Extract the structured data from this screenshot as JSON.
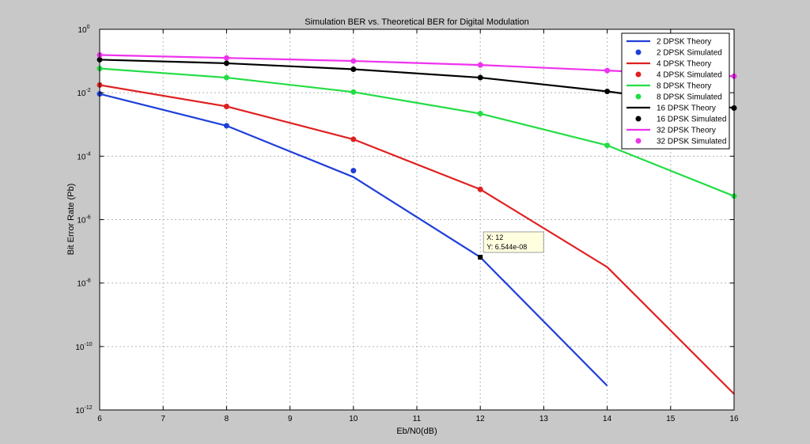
{
  "chart_data": {
    "type": "line",
    "title": "Simulation BER vs. Theoretical BER for Digital Modulation",
    "xlabel": "Eb/N0(dB)",
    "ylabel": "Bit Error Rate (Pb)",
    "xlim": [
      6,
      16
    ],
    "ylim": [
      1e-12,
      1
    ],
    "yscale": "log",
    "grid": true,
    "legend_position": "top-right",
    "x_ticks": [
      6,
      7,
      8,
      9,
      10,
      11,
      12,
      13,
      14,
      15,
      16
    ],
    "x_tick_labels": [
      "6",
      "7",
      "8",
      "9",
      "10",
      "11",
      "12",
      "13",
      "14",
      "15",
      "16"
    ],
    "y_ticks": [
      1,
      0.01,
      0.0001,
      1e-06,
      1e-08,
      1e-10,
      1e-12
    ],
    "y_tick_labels": [
      {
        "base": "10",
        "exp": "0"
      },
      {
        "base": "10",
        "exp": "-2"
      },
      {
        "base": "10",
        "exp": "-4"
      },
      {
        "base": "10",
        "exp": "-6"
      },
      {
        "base": "10",
        "exp": "-8"
      },
      {
        "base": "10",
        "exp": "-10"
      },
      {
        "base": "10",
        "exp": "-12"
      }
    ],
    "series": [
      {
        "name": "2 DPSK Theory",
        "kind": "line",
        "color": "#1f3fd9",
        "x": [
          6,
          8,
          10,
          12,
          14
        ],
        "y": [
          0.0092,
          0.00091,
          2.2e-05,
          6.544e-08,
          5.8e-12
        ]
      },
      {
        "name": "2 DPSK Simulated",
        "kind": "marker",
        "color": "#1f3fd9",
        "x": [
          6,
          8,
          10
        ],
        "y": [
          0.0092,
          0.00091,
          3.5e-05
        ]
      },
      {
        "name": "4 DPSK Theory",
        "kind": "line",
        "color": "#e02020",
        "x": [
          6,
          8,
          10,
          12,
          14,
          16
        ],
        "y": [
          0.0175,
          0.0037,
          0.00034,
          9e-06,
          3.2e-08,
          3.2e-12
        ]
      },
      {
        "name": "4 DPSK Simulated",
        "kind": "marker",
        "color": "#e02020",
        "x": [
          6,
          8,
          10,
          12
        ],
        "y": [
          0.0175,
          0.0037,
          0.00034,
          9e-06
        ]
      },
      {
        "name": "8 DPSK Theory",
        "kind": "line",
        "color": "#22dd44",
        "x": [
          6,
          8,
          10,
          12,
          14,
          16
        ],
        "y": [
          0.058,
          0.03,
          0.0105,
          0.0022,
          0.00022,
          5.5e-06
        ]
      },
      {
        "name": "8 DPSK Simulated",
        "kind": "marker",
        "color": "#22dd44",
        "x": [
          6,
          8,
          10,
          12,
          14,
          16
        ],
        "y": [
          0.058,
          0.03,
          0.0105,
          0.0022,
          0.00022,
          5.5e-06
        ]
      },
      {
        "name": "16 DPSK Theory",
        "kind": "line",
        "color": "#000000",
        "x": [
          6,
          8,
          10,
          12,
          14,
          16
        ],
        "y": [
          0.11,
          0.085,
          0.055,
          0.03,
          0.011,
          0.0033
        ]
      },
      {
        "name": "16 DPSK Simulated",
        "kind": "marker",
        "color": "#000000",
        "x": [
          6,
          8,
          10,
          12,
          14,
          16
        ],
        "y": [
          0.11,
          0.085,
          0.055,
          0.03,
          0.011,
          0.0033
        ]
      },
      {
        "name": "32 DPSK Theory",
        "kind": "line",
        "color": "#ee33ee",
        "x": [
          6,
          8,
          10,
          12,
          14,
          16
        ],
        "y": [
          0.155,
          0.125,
          0.1,
          0.075,
          0.05,
          0.033
        ]
      },
      {
        "name": "32 DPSK Simulated",
        "kind": "marker",
        "color": "#ee33ee",
        "x": [
          6,
          8,
          10,
          12,
          14,
          16
        ],
        "y": [
          0.155,
          0.125,
          0.1,
          0.075,
          0.05,
          0.033
        ]
      }
    ],
    "datatip": {
      "x": 12,
      "y": 6.544e-08,
      "line1": "X: 12",
      "line2": "Y: 6.544e-08"
    }
  }
}
